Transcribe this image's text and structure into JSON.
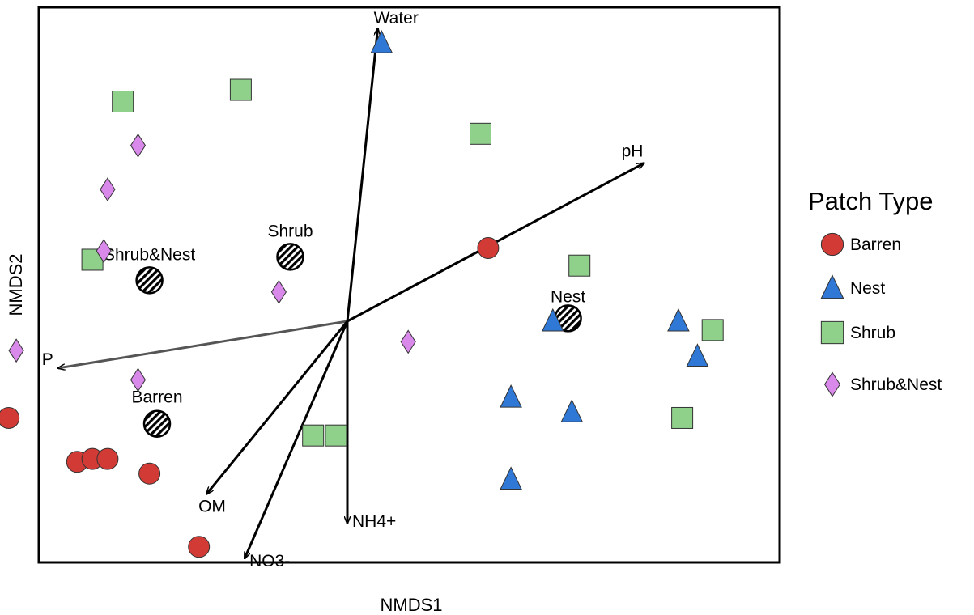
{
  "chart_data": {
    "type": "scatter",
    "title": "",
    "xlabel": "NMDS1",
    "ylabel": "NMDS2",
    "grid": false,
    "xlim": [
      -1.0,
      1.0
    ],
    "ylim": [
      -1.0,
      1.0
    ],
    "legend": {
      "title": "Patch Type",
      "placement": "right",
      "entries": [
        "Barren",
        "Nest",
        "Shrub",
        "Shrub&Nest"
      ]
    },
    "series": [
      {
        "name": "Barren",
        "marker": "circle",
        "color": "#d23a35",
        "points": [
          [
            -0.89,
            -0.33
          ],
          [
            -0.71,
            -0.48
          ],
          [
            -0.67,
            -0.47
          ],
          [
            -0.63,
            -0.47
          ],
          [
            -0.52,
            -0.52
          ],
          [
            -0.39,
            -0.77
          ],
          [
            0.37,
            0.25
          ]
        ]
      },
      {
        "name": "Nest",
        "marker": "triangle",
        "color": "#2f78d6",
        "points": [
          [
            0.09,
            0.95
          ],
          [
            0.43,
            -0.54
          ],
          [
            0.43,
            -0.26
          ],
          [
            0.54,
            0.0
          ],
          [
            0.59,
            -0.31
          ],
          [
            0.87,
            0.0
          ],
          [
            0.92,
            -0.12
          ]
        ]
      },
      {
        "name": "Shrub",
        "marker": "square",
        "color": "#8fd18b",
        "points": [
          [
            -0.67,
            0.21
          ],
          [
            -0.59,
            0.75
          ],
          [
            -0.28,
            0.79
          ],
          [
            -0.03,
            -0.39
          ],
          [
            -0.09,
            -0.39
          ],
          [
            0.35,
            0.64
          ],
          [
            0.61,
            0.19
          ],
          [
            0.88,
            -0.33
          ],
          [
            0.96,
            -0.03
          ]
        ]
      },
      {
        "name": "Shrub&Nest",
        "marker": "diamond",
        "color": "#d889ea",
        "points": [
          [
            -0.87,
            -0.1
          ],
          [
            -0.63,
            0.45
          ],
          [
            -0.64,
            0.24
          ],
          [
            -0.55,
            0.6
          ],
          [
            -0.55,
            -0.2
          ],
          [
            -0.18,
            0.1
          ],
          [
            0.16,
            -0.07
          ]
        ]
      }
    ],
    "centroids": [
      {
        "label": "Barren",
        "x": -0.5,
        "y": -0.35
      },
      {
        "label": "Shrub&Nest",
        "x": -0.52,
        "y": 0.14
      },
      {
        "label": "Shrub",
        "x": -0.15,
        "y": 0.22
      },
      {
        "label": "Nest",
        "x": 0.58,
        "y": 0.01
      }
    ],
    "vectors": [
      {
        "label": "Water",
        "x": 0.08,
        "y": 1.0
      },
      {
        "label": "pH",
        "x": 0.78,
        "y": 0.54
      },
      {
        "label": "P",
        "x": -0.76,
        "y": -0.16
      },
      {
        "label": "OM",
        "x": -0.37,
        "y": -0.59
      },
      {
        "label": "NO3-",
        "x": -0.27,
        "y": -0.81
      },
      {
        "label": "NH4+",
        "x": 0.0,
        "y": -0.69
      }
    ]
  }
}
